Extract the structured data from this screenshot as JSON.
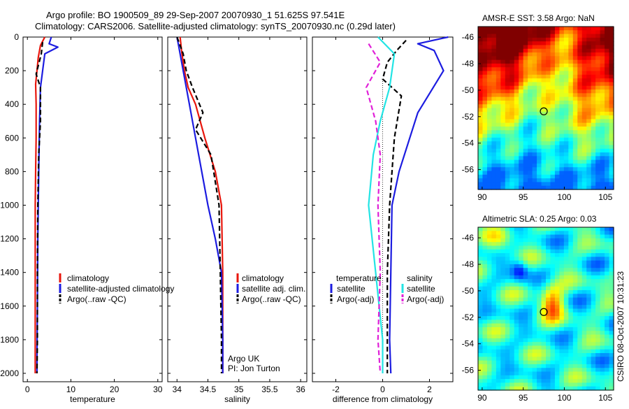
{
  "title_line1": "Argo profile: BO 1900509_89 29-Sep-2007 20070930_1 51.625S 97.541E",
  "title_line2": "Climatology: CARS2006. Satellite-adjusted climatology: synTS_20070930.nc (0.29d later)",
  "side_label": "CSIRO 08-Oct-2007 10:31:23",
  "colors": {
    "climatology": "#e8160c",
    "satellite": "#1c1ce0",
    "argo": "#000000",
    "cyan": "#22e4e4",
    "magenta": "#e020d8"
  },
  "chart_data": [
    {
      "id": "temperature",
      "type": "line",
      "xlabel": "temperature",
      "xlim": [
        -1,
        31
      ],
      "ylim": [
        2050,
        0
      ],
      "xticks": [
        "0",
        "10",
        "20",
        "30"
      ],
      "yticks": [
        "0",
        "200",
        "400",
        "600",
        "800",
        "1000",
        "1200",
        "1400",
        "1600",
        "1800",
        "2000"
      ],
      "legend": [
        "climatology",
        "satellite-adjusted climatology",
        "Argo(..raw -QC)"
      ],
      "series": [
        {
          "name": "climatology",
          "style": "solid",
          "color": "climatology",
          "x": [
            4.0,
            3.0,
            2.5,
            2.2,
            1.9,
            2.0,
            2.0,
            1.9,
            1.8,
            1.8,
            1.8,
            1.8
          ],
          "y": [
            0,
            50,
            120,
            200,
            280,
            400,
            600,
            800,
            1000,
            1400,
            1800,
            2000
          ]
        },
        {
          "name": "satellite-adjusted climatology",
          "style": "solid",
          "color": "satellite",
          "x": [
            5.5,
            5.0,
            7.0,
            4.0,
            3.5,
            3.0,
            2.8,
            2.6,
            2.4,
            2.3,
            2.2,
            2.2
          ],
          "y": [
            0,
            40,
            60,
            100,
            200,
            300,
            500,
            800,
            1200,
            1600,
            1900,
            2000
          ]
        },
        {
          "name": "Argo(..raw -QC)",
          "style": "dashed",
          "color": "argo",
          "x": [
            3.5,
            3.2,
            2.6,
            2.0,
            3.0,
            3.0,
            2.6,
            2.4,
            2.3,
            2.3,
            2.2
          ],
          "y": [
            30,
            100,
            160,
            220,
            300,
            500,
            700,
            1000,
            1400,
            1800,
            2000
          ]
        }
      ]
    },
    {
      "id": "salinity",
      "type": "line",
      "xlabel": "salinity",
      "xlim": [
        33.85,
        36.1
      ],
      "ylim": [
        2050,
        0
      ],
      "xticks": [
        "34",
        "34.5",
        "35",
        "35.5",
        "36"
      ],
      "legend": [
        "climatology",
        "satellite adj. clim.",
        "Argo(..raw -QC)"
      ],
      "note_lines": [
        "Argo UK",
        "PI: Jon Turton"
      ],
      "series": [
        {
          "name": "climatology",
          "style": "solid",
          "color": "climatology",
          "x": [
            34.05,
            34.08,
            34.12,
            34.18,
            34.3,
            34.45,
            34.62,
            34.72,
            34.74,
            34.74,
            34.74
          ],
          "y": [
            0,
            100,
            200,
            300,
            400,
            600,
            800,
            1000,
            1400,
            1800,
            2000
          ]
        },
        {
          "name": "satellite adj. clim.",
          "style": "solid",
          "color": "satellite",
          "x": [
            34.0,
            34.05,
            34.1,
            34.2,
            34.35,
            34.5,
            34.62,
            34.72,
            34.74,
            34.74
          ],
          "y": [
            0,
            100,
            200,
            400,
            700,
            1000,
            1200,
            1400,
            1800,
            2000
          ]
        },
        {
          "name": "Argo(..raw -QC)",
          "style": "dashed",
          "color": "argo",
          "x": [
            34.0,
            34.1,
            34.15,
            34.25,
            34.42,
            34.3,
            34.55,
            34.68,
            34.7,
            34.72,
            34.72
          ],
          "y": [
            0,
            100,
            200,
            300,
            450,
            550,
            700,
            1000,
            1400,
            1800,
            2000
          ]
        }
      ]
    },
    {
      "id": "difference",
      "type": "line",
      "xlabel": "difference from climatology",
      "xlim": [
        -3,
        3
      ],
      "ylim": [
        2050,
        0
      ],
      "xticks": [
        "-2",
        "0",
        "2"
      ],
      "legend_groups": [
        {
          "heading": "temperature",
          "entries": [
            "satellite",
            "Argo(-adj)"
          ]
        },
        {
          "heading": "salinity",
          "entries": [
            "satellite",
            "Argo(-adj)"
          ]
        }
      ],
      "series": [
        {
          "name": "temperature satellite",
          "style": "solid",
          "color": "satellite",
          "x": [
            2.8,
            1.5,
            2.2,
            2.6,
            1.5,
            0.7,
            0.4,
            0.35,
            0.3,
            0.35
          ],
          "y": [
            0,
            40,
            80,
            200,
            450,
            800,
            1000,
            1400,
            1800,
            2000
          ]
        },
        {
          "name": "temperature Argo(-adj)",
          "style": "dashed",
          "color": "argo",
          "x": [
            1.0,
            0.6,
            0.2,
            0.0,
            0.8,
            0.5,
            0.3,
            0.2,
            0.2
          ],
          "y": [
            20,
            80,
            150,
            250,
            350,
            600,
            1000,
            1400,
            2000
          ]
        },
        {
          "name": "salinity satellite",
          "style": "solid",
          "color": "cyan",
          "x": [
            -0.2,
            0.5,
            0.3,
            -0.1,
            -0.4,
            -0.6,
            -0.3,
            0.0,
            0.0
          ],
          "y": [
            0,
            100,
            300,
            500,
            700,
            1000,
            1400,
            1800,
            2000
          ]
        },
        {
          "name": "salinity Argo(-adj)",
          "style": "dashed",
          "color": "magenta",
          "x": [
            -0.6,
            -0.1,
            -0.7,
            -0.3,
            -0.1,
            -0.2,
            -0.1,
            -0.2,
            -0.1
          ],
          "y": [
            40,
            150,
            300,
            500,
            700,
            1000,
            1400,
            1800,
            2000
          ]
        }
      ]
    }
  ],
  "map_sst": {
    "title": "AMSR-E SST: 3.58 Argo: NaN",
    "xticks": [
      "90",
      "95",
      "100",
      "105"
    ],
    "yticks": [
      "-46",
      "-48",
      "-50",
      "-52",
      "-54",
      "-56"
    ],
    "xlim": [
      89.5,
      106
    ],
    "ylim": [
      -57.5,
      -45.2
    ],
    "marker": [
      97.5,
      -51.6
    ]
  },
  "map_sla": {
    "title": "Altimetric SLA: 0.25 Argo: 0.03",
    "xticks": [
      "90",
      "95",
      "100",
      "105"
    ],
    "yticks": [
      "-46",
      "-48",
      "-50",
      "-52",
      "-54",
      "-56"
    ],
    "xlim": [
      89.5,
      106
    ],
    "ylim": [
      -57.5,
      -45.2
    ],
    "marker": [
      97.5,
      -51.6
    ]
  }
}
